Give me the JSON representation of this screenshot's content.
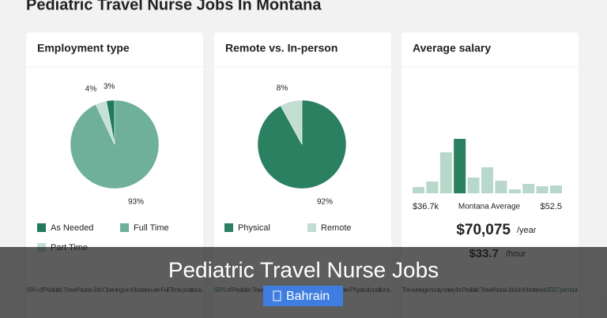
{
  "page_title": "Pediatric Travel Nurse Jobs In Montana",
  "cards": [
    {
      "title": "Employment type",
      "chart_data": {
        "type": "pie",
        "categories": [
          "As Needed",
          "Full Time",
          "Part Time"
        ],
        "values": [
          3,
          93,
          4
        ],
        "value_labels": [
          "3%",
          "93%",
          "4%"
        ],
        "colors": [
          "#217a5c",
          "#6fb09a",
          "#c5e0d6"
        ]
      },
      "note": {
        "highlight": "93%",
        "text": " of Pediatric Travel Nurse Job Openings in Montana are Full Time positions."
      }
    },
    {
      "title": "Remote vs. In-person",
      "chart_data": {
        "type": "pie",
        "categories": [
          "Physical",
          "Remote"
        ],
        "values": [
          92,
          8
        ],
        "value_labels": [
          "92%",
          "8%"
        ],
        "colors": [
          "#2a8060",
          "#c2ddd2"
        ]
      },
      "note": {
        "highlight": "92%",
        "text": " of Pediatric Travel Nurse Job Openings in Montana are Physical positions."
      }
    },
    {
      "title": "Average salary",
      "chart_data": {
        "type": "bar",
        "values": [
          8,
          15,
          52,
          69,
          20,
          33,
          16,
          5,
          12,
          9,
          10
        ],
        "colors": [
          "#b7d8cb",
          "#b7d8cb",
          "#b7d8cb",
          "#2a8060",
          "#b7d8cb",
          "#b7d8cb",
          "#b7d8cb",
          "#b7d8cb",
          "#b7d8cb",
          "#b7d8cb",
          "#b7d8cb"
        ],
        "min_label": "$36.7k",
        "mid_label": "Montana Average",
        "max_label": "$52.5"
      },
      "salary_year": "$70,075",
      "year_unit": "/year",
      "salary_hour": "$33.7",
      "hour_unit": "/hour",
      "note": {
        "text": "The average hourly salary for Pediatric Travel Nurse Jobs in Montana is ",
        "highlight": "$33.7 per hour",
        "end": "."
      }
    }
  ],
  "overlay": {
    "title": "Pediatric Travel Nurse Jobs",
    "button": "Bahrain"
  }
}
